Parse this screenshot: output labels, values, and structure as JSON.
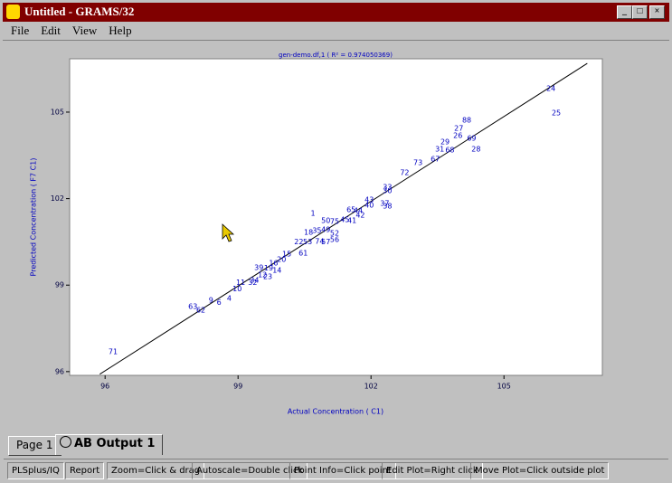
{
  "window": {
    "title": "Untitled - GRAMS/32",
    "menu": [
      "File",
      "Edit",
      "View",
      "Help"
    ],
    "tabs": [
      "Page 1",
      "AB Output 1"
    ],
    "status": [
      "PLSplus/IQ",
      "Report",
      "Zoom=Click & drag",
      "Autoscale=Double click",
      "Point Info=Click point",
      "Edit Plot=Right click",
      "Move Plot=Click outside plot"
    ]
  },
  "chart_data": {
    "type": "scatter",
    "title": "gen-demo.df,1 ( R² = 0.974050369)",
    "x_label": "Actual Concentration ( C1)",
    "y_label": "Predicted Concentration ( F7 C1)",
    "color": "#0000c0",
    "labels": [
      "71",
      "63",
      "62",
      "9",
      "6",
      "4",
      "10",
      "11",
      "32",
      "34",
      "39",
      "12",
      "23",
      "19",
      "16",
      "14",
      "20",
      "15",
      "61",
      "22",
      "53",
      "18",
      "74",
      "57",
      "35",
      "49",
      "52",
      "56",
      "1",
      "50",
      "75",
      "45",
      "41",
      "65",
      "44",
      "42",
      "43",
      "40",
      "37",
      "38",
      "33",
      "30",
      "72",
      "73",
      "67",
      "31",
      "68",
      "29",
      "26",
      "27",
      "88",
      "69",
      "28",
      "24",
      "25"
    ],
    "x": [
      96.18,
      97.98,
      98.16,
      98.39,
      98.57,
      98.8,
      98.98,
      99.06,
      99.33,
      99.37,
      99.47,
      99.55,
      99.67,
      99.69,
      99.8,
      99.88,
      99.98,
      100.1,
      100.47,
      100.37,
      100.57,
      100.59,
      100.84,
      100.98,
      100.78,
      100.98,
      101.18,
      101.18,
      100.69,
      100.98,
      101.18,
      101.41,
      101.57,
      101.55,
      101.71,
      101.76,
      101.96,
      101.96,
      102.31,
      102.37,
      102.37,
      102.37,
      102.76,
      103.06,
      103.45,
      103.55,
      103.78,
      103.67,
      103.96,
      103.98,
      104.16,
      104.27,
      104.37,
      106.06,
      106.18
    ],
    "y": [
      96.69,
      98.26,
      98.13,
      98.48,
      98.39,
      98.54,
      98.86,
      99.08,
      99.08,
      99.17,
      99.61,
      99.36,
      99.29,
      99.58,
      99.76,
      99.51,
      99.89,
      100.08,
      100.11,
      100.49,
      100.49,
      100.83,
      100.52,
      100.49,
      100.89,
      100.92,
      100.8,
      100.58,
      101.49,
      101.24,
      101.21,
      101.27,
      101.24,
      101.61,
      101.58,
      101.43,
      101.96,
      101.77,
      101.83,
      101.74,
      102.4,
      102.27,
      102.9,
      103.24,
      103.37,
      103.71,
      103.68,
      103.97,
      104.18,
      104.44,
      104.72,
      104.09,
      103.71,
      105.82,
      104.97
    ],
    "fit_line": {
      "x": [
        95.88,
        106.88
      ],
      "y": [
        95.91,
        106.69
      ],
      "color": "#000000"
    },
    "xlim": [
      95.2,
      107.22
    ],
    "ylim": [
      95.87,
      106.85
    ],
    "xticks": [
      96,
      99,
      102,
      105
    ],
    "yticks": [
      96,
      99,
      102,
      105
    ]
  }
}
